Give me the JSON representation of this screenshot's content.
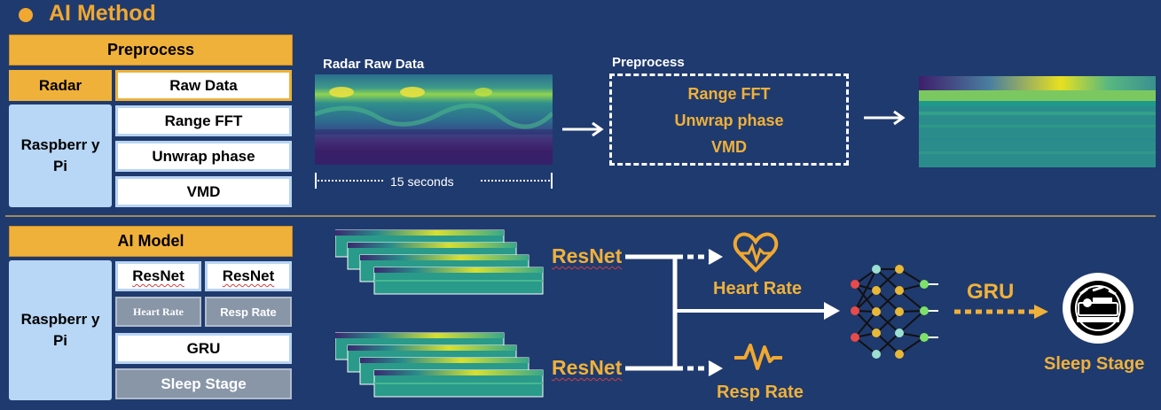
{
  "title": "AI Method",
  "top": {
    "header": "Preprocess",
    "radar_label": "Radar",
    "rpi_label": "Raspberr y Pi",
    "steps": [
      "Raw Data",
      "Range FFT",
      "Unwrap phase",
      "VMD"
    ],
    "raw_data_label": "Radar Raw Data",
    "duration_label": "15 seconds",
    "preprocess_label": "Preprocess",
    "preprocess_steps": [
      "Range FFT",
      "Unwrap phase",
      "VMD"
    ]
  },
  "bottom": {
    "header": "AI Model",
    "rpi_label": "Raspberr y Pi",
    "resnet_a": "ResNet",
    "resnet_b": "ResNet",
    "heart_small": "Heart Rate",
    "resp_small": "Resp Rate",
    "gru_box": "GRU",
    "sleep_box": "Sleep Stage",
    "resnet_top": "ResNet",
    "resnet_bottom": "ResNet",
    "heart_rate": "Heart Rate",
    "resp_rate": "Resp Rate",
    "gru": "GRU",
    "sleep_stage": "Sleep Stage"
  },
  "colors": {
    "background": "#1f3a6e",
    "accent": "#f0a830"
  },
  "icons": [
    "heart-pulse-icon",
    "pulse-wave-icon",
    "neural-network-icon",
    "sleep-stage-icon"
  ]
}
